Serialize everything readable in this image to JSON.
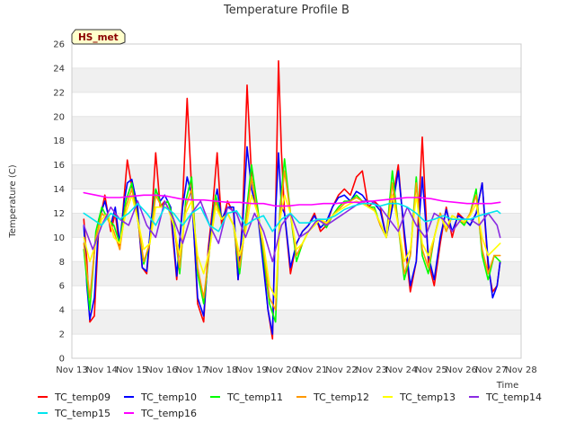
{
  "chart_data": {
    "type": "line",
    "title": "Temperature Profile B",
    "xlabel": "Time",
    "ylabel": "Temperature (C)",
    "ylim": [
      0,
      26
    ],
    "yticks": [
      0,
      2,
      4,
      6,
      8,
      10,
      12,
      14,
      16,
      18,
      20,
      22,
      24,
      26
    ],
    "xlim": [
      13,
      28
    ],
    "xticks": [
      {
        "value": 13,
        "label": "Nov 13"
      },
      {
        "value": 14,
        "label": "Nov 14"
      },
      {
        "value": 15,
        "label": "Nov 15"
      },
      {
        "value": 16,
        "label": "Nov 16"
      },
      {
        "value": 17,
        "label": "Nov 17"
      },
      {
        "value": 18,
        "label": "Nov 18"
      },
      {
        "value": 19,
        "label": "Nov 19"
      },
      {
        "value": 20,
        "label": "Nov 20"
      },
      {
        "value": 21,
        "label": "Nov 21"
      },
      {
        "value": 22,
        "label": "Nov 22"
      },
      {
        "value": 23,
        "label": "Nov 23"
      },
      {
        "value": 24,
        "label": "Nov 24"
      },
      {
        "value": 25,
        "label": "Nov 25"
      },
      {
        "value": 26,
        "label": "Nov 26"
      },
      {
        "value": 27,
        "label": "Nov 27"
      },
      {
        "value": 28,
        "label": "Nov 28"
      }
    ],
    "grid": "horizontal bands",
    "legend_position": "bottom",
    "annotation": "HS_met",
    "series": [
      {
        "name": "TC_temp09",
        "color": "#ff0000",
        "x": [
          13.4,
          13.5,
          13.6,
          13.75,
          13.9,
          14.1,
          14.3,
          14.45,
          14.6,
          14.75,
          14.85,
          15.0,
          15.2,
          15.35,
          15.5,
          15.65,
          15.8,
          15.95,
          16.1,
          16.3,
          16.5,
          16.7,
          16.85,
          17.0,
          17.2,
          17.4,
          17.55,
          17.7,
          17.85,
          18.0,
          18.2,
          18.4,
          18.55,
          18.7,
          18.85,
          19.0,
          19.2,
          19.4,
          19.55,
          19.7,
          19.8,
          19.9,
          20.0,
          20.1,
          20.3,
          20.5,
          20.7,
          20.9,
          21.1,
          21.3,
          21.5,
          21.7,
          21.9,
          22.1,
          22.3,
          22.5,
          22.7,
          22.9,
          23.1,
          23.3,
          23.5,
          23.7,
          23.9,
          24.1,
          24.3,
          24.5,
          24.7,
          24.9,
          25.1,
          25.3,
          25.5,
          25.7,
          25.9,
          26.1,
          26.3,
          26.5,
          26.7,
          26.9,
          27.05,
          27.2,
          27.3
        ],
        "y": [
          11.5,
          8.0,
          3.0,
          3.5,
          11.0,
          13.5,
          10.5,
          12.0,
          9.0,
          13.5,
          16.4,
          14.2,
          12.0,
          7.5,
          7.0,
          11.0,
          17.0,
          12.5,
          13.0,
          12.0,
          6.5,
          13.0,
          21.5,
          14.0,
          4.5,
          3.0,
          9.0,
          12.5,
          17.0,
          11.0,
          13.0,
          12.0,
          6.5,
          11.5,
          22.6,
          15.0,
          12.0,
          8.0,
          4.0,
          1.6,
          12.0,
          24.6,
          17.0,
          12.0,
          7.0,
          9.5,
          10.5,
          11.0,
          12.0,
          10.5,
          11.0,
          12.5,
          13.5,
          14.0,
          13.5,
          15.0,
          15.5,
          12.5,
          13.0,
          12.5,
          10.0,
          13.0,
          16.0,
          10.0,
          5.5,
          8.0,
          18.3,
          8.0,
          6.0,
          9.5,
          12.5,
          10.0,
          12.0,
          11.5,
          11.0,
          12.0,
          14.5,
          7.5,
          5.5,
          6.0,
          8.0
        ]
      },
      {
        "name": "TC_temp10",
        "color": "#0000ff",
        "x": [
          13.4,
          13.5,
          13.6,
          13.75,
          13.9,
          14.1,
          14.3,
          14.45,
          14.6,
          14.75,
          14.85,
          15.0,
          15.2,
          15.35,
          15.5,
          15.65,
          15.8,
          15.95,
          16.1,
          16.3,
          16.5,
          16.7,
          16.85,
          17.0,
          17.2,
          17.4,
          17.55,
          17.7,
          17.85,
          18.0,
          18.2,
          18.4,
          18.55,
          18.7,
          18.85,
          19.0,
          19.2,
          19.4,
          19.55,
          19.7,
          19.8,
          19.9,
          20.0,
          20.1,
          20.3,
          20.5,
          20.7,
          20.9,
          21.1,
          21.3,
          21.5,
          21.7,
          21.9,
          22.1,
          22.3,
          22.5,
          22.7,
          22.9,
          23.1,
          23.3,
          23.5,
          23.7,
          23.9,
          24.1,
          24.3,
          24.5,
          24.7,
          24.9,
          25.1,
          25.3,
          25.5,
          25.7,
          25.9,
          26.1,
          26.3,
          26.5,
          26.7,
          26.9,
          27.05,
          27.2,
          27.3
        ],
        "y": [
          11.0,
          6.0,
          3.2,
          5.0,
          11.5,
          13.0,
          11.0,
          12.5,
          9.5,
          13.0,
          14.5,
          14.8,
          12.5,
          7.5,
          7.2,
          11.5,
          14.0,
          13.0,
          13.5,
          12.5,
          6.8,
          12.5,
          15.0,
          13.5,
          5.0,
          3.5,
          8.5,
          12.0,
          14.0,
          11.5,
          12.5,
          12.5,
          6.5,
          11.0,
          17.5,
          14.0,
          12.0,
          7.5,
          4.0,
          2.0,
          12.0,
          17.0,
          12.5,
          12.0,
          7.5,
          9.5,
          10.5,
          11.0,
          11.8,
          10.8,
          11.3,
          12.5,
          13.3,
          13.5,
          13.0,
          13.8,
          13.5,
          12.8,
          12.8,
          12.2,
          10.0,
          12.5,
          15.5,
          10.5,
          6.0,
          8.0,
          15.0,
          8.5,
          6.5,
          10.0,
          12.3,
          10.5,
          11.8,
          11.5,
          11.0,
          12.0,
          14.5,
          8.0,
          5.0,
          6.0,
          8.0
        ]
      },
      {
        "name": "TC_temp11",
        "color": "#00ff00",
        "x": [
          13.4,
          13.6,
          13.8,
          14.0,
          14.2,
          14.4,
          14.6,
          14.8,
          15.0,
          15.2,
          15.4,
          15.6,
          15.8,
          16.0,
          16.2,
          16.4,
          16.6,
          16.8,
          17.0,
          17.2,
          17.4,
          17.6,
          17.8,
          18.0,
          18.2,
          18.4,
          18.6,
          18.8,
          19.0,
          19.2,
          19.4,
          19.6,
          19.8,
          19.95,
          20.1,
          20.3,
          20.5,
          20.7,
          20.9,
          21.1,
          21.3,
          21.5,
          21.7,
          21.9,
          22.1,
          22.3,
          22.5,
          22.7,
          22.9,
          23.1,
          23.3,
          23.5,
          23.7,
          23.9,
          24.1,
          24.3,
          24.5,
          24.7,
          24.9,
          25.1,
          25.3,
          25.5,
          25.7,
          25.9,
          26.1,
          26.3,
          26.5,
          26.7,
          26.9,
          27.1,
          27.3
        ],
        "y": [
          9.0,
          4.0,
          10.5,
          12.5,
          11.5,
          11.0,
          9.5,
          13.0,
          14.5,
          11.5,
          7.8,
          9.5,
          14.0,
          12.5,
          13.0,
          11.5,
          7.0,
          13.0,
          15.0,
          7.0,
          4.5,
          9.0,
          13.5,
          11.5,
          12.0,
          11.0,
          7.0,
          11.5,
          16.0,
          12.5,
          8.5,
          4.5,
          3.0,
          12.5,
          16.5,
          12.0,
          8.0,
          9.5,
          10.5,
          11.0,
          11.5,
          10.8,
          11.8,
          12.5,
          13.0,
          13.0,
          13.5,
          13.0,
          12.5,
          12.5,
          11.0,
          10.0,
          15.5,
          11.0,
          6.5,
          8.5,
          15.0,
          8.5,
          7.0,
          10.0,
          12.0,
          10.5,
          11.8,
          11.5,
          11.0,
          12.0,
          14.0,
          8.5,
          6.5,
          8.5,
          8.0
        ]
      },
      {
        "name": "TC_temp12",
        "color": "#ff9900",
        "x": [
          13.4,
          13.6,
          13.8,
          14.0,
          14.2,
          14.4,
          14.6,
          14.8,
          15.0,
          15.2,
          15.4,
          15.6,
          15.8,
          16.0,
          16.2,
          16.4,
          16.6,
          16.8,
          17.0,
          17.2,
          17.4,
          17.6,
          17.8,
          18.0,
          18.2,
          18.4,
          18.6,
          18.8,
          19.0,
          19.2,
          19.4,
          19.6,
          19.8,
          19.95,
          20.1,
          20.3,
          20.5,
          20.7,
          20.9,
          21.1,
          21.3,
          21.5,
          21.7,
          21.9,
          22.1,
          22.3,
          22.5,
          22.7,
          22.9,
          23.1,
          23.3,
          23.5,
          23.7,
          23.9,
          24.1,
          24.3,
          24.5,
          24.7,
          24.9,
          25.1,
          25.3,
          25.5,
          25.7,
          25.9,
          26.1,
          26.3,
          26.5,
          26.7,
          26.9,
          27.1,
          27.3
        ],
        "y": [
          9.5,
          5.0,
          10.0,
          12.0,
          11.5,
          10.5,
          9.0,
          12.5,
          14.0,
          11.5,
          8.0,
          9.5,
          13.5,
          12.5,
          12.5,
          11.0,
          7.5,
          12.5,
          14.0,
          7.5,
          5.0,
          9.0,
          13.0,
          11.5,
          12.0,
          11.0,
          7.5,
          11.0,
          15.0,
          12.0,
          9.0,
          5.0,
          4.0,
          12.0,
          15.5,
          12.0,
          8.5,
          9.5,
          10.5,
          11.0,
          11.5,
          11.0,
          11.8,
          12.3,
          12.8,
          13.0,
          13.3,
          13.0,
          12.5,
          12.3,
          11.0,
          10.0,
          14.5,
          11.0,
          7.0,
          8.5,
          14.5,
          9.0,
          7.5,
          10.0,
          12.0,
          10.5,
          11.8,
          11.5,
          11.2,
          12.0,
          13.5,
          9.0,
          7.0,
          8.5,
          8.5
        ]
      },
      {
        "name": "TC_temp13",
        "color": "#ffff00",
        "x": [
          13.4,
          13.6,
          13.8,
          14.0,
          14.2,
          14.4,
          14.6,
          14.8,
          15.0,
          15.2,
          15.4,
          15.6,
          15.8,
          16.0,
          16.2,
          16.4,
          16.6,
          16.8,
          17.0,
          17.2,
          17.4,
          17.6,
          17.8,
          18.0,
          18.2,
          18.4,
          18.6,
          18.8,
          19.0,
          19.2,
          19.4,
          19.6,
          19.8,
          19.95,
          20.1,
          20.3,
          20.5,
          20.7,
          20.9,
          21.1,
          21.3,
          21.5,
          21.7,
          21.9,
          22.1,
          22.3,
          22.5,
          22.7,
          22.9,
          23.1,
          23.3,
          23.5,
          23.7,
          23.9,
          24.1,
          24.3,
          24.5,
          24.7,
          24.9,
          25.1,
          25.3,
          25.5,
          25.7,
          25.9,
          26.1,
          26.3,
          26.5,
          26.7,
          26.9,
          27.1,
          27.3
        ],
        "y": [
          10.0,
          8.0,
          9.5,
          11.5,
          12.0,
          10.0,
          9.5,
          12.0,
          13.5,
          11.5,
          9.0,
          9.5,
          12.5,
          12.5,
          12.5,
          11.0,
          8.5,
          12.0,
          13.0,
          8.5,
          7.0,
          9.0,
          12.5,
          11.5,
          12.0,
          11.0,
          8.5,
          10.5,
          13.5,
          12.0,
          9.5,
          6.0,
          5.0,
          11.5,
          13.5,
          12.0,
          9.0,
          9.5,
          10.5,
          11.0,
          11.5,
          11.2,
          11.8,
          12.2,
          12.5,
          12.8,
          13.0,
          12.8,
          12.5,
          12.2,
          11.2,
          10.0,
          13.5,
          11.0,
          8.0,
          9.0,
          13.5,
          9.5,
          8.5,
          10.0,
          11.8,
          10.8,
          11.8,
          11.5,
          11.3,
          11.8,
          12.8,
          10.0,
          8.5,
          9.0,
          9.5
        ]
      },
      {
        "name": "TC_temp14",
        "color": "#8a2be2",
        "x": [
          13.4,
          13.7,
          14.0,
          14.3,
          14.6,
          14.9,
          15.2,
          15.5,
          15.8,
          16.1,
          16.4,
          16.7,
          17.0,
          17.3,
          17.6,
          17.9,
          18.2,
          18.5,
          18.8,
          19.1,
          19.4,
          19.7,
          20.0,
          20.3,
          20.6,
          20.9,
          21.2,
          21.5,
          21.8,
          22.1,
          22.4,
          22.7,
          23.0,
          23.3,
          23.6,
          23.9,
          24.2,
          24.5,
          24.8,
          25.1,
          25.4,
          25.7,
          26.0,
          26.3,
          26.6,
          26.9,
          27.2,
          27.3
        ],
        "y": [
          11.0,
          9.0,
          11.0,
          12.5,
          11.5,
          11.0,
          13.0,
          11.0,
          10.0,
          13.0,
          11.5,
          9.5,
          12.0,
          13.0,
          11.0,
          9.5,
          12.5,
          12.0,
          10.0,
          12.0,
          10.5,
          8.0,
          11.0,
          12.0,
          10.0,
          10.5,
          11.5,
          11.0,
          11.5,
          12.0,
          12.5,
          13.0,
          13.0,
          12.5,
          11.5,
          10.5,
          12.5,
          11.0,
          10.0,
          12.0,
          11.5,
          10.5,
          11.5,
          11.5,
          11.0,
          12.0,
          11.0,
          10.0
        ]
      },
      {
        "name": "TC_temp15",
        "color": "#00e5ee",
        "x": [
          13.4,
          13.7,
          14.0,
          14.3,
          14.6,
          14.9,
          15.2,
          15.5,
          15.8,
          16.1,
          16.4,
          16.7,
          17.0,
          17.3,
          17.6,
          17.9,
          18.2,
          18.5,
          18.8,
          19.1,
          19.4,
          19.7,
          20.0,
          20.3,
          20.6,
          20.9,
          21.2,
          21.5,
          21.8,
          22.1,
          22.4,
          22.7,
          23.0,
          23.3,
          23.6,
          23.9,
          24.2,
          24.5,
          24.8,
          25.1,
          25.4,
          25.7,
          26.0,
          26.3,
          26.6,
          26.9,
          27.2,
          27.3
        ],
        "y": [
          12.0,
          11.5,
          11.0,
          12.0,
          11.5,
          12.0,
          12.8,
          12.0,
          11.0,
          12.5,
          12.0,
          11.0,
          12.0,
          12.5,
          11.0,
          10.5,
          12.0,
          12.2,
          11.0,
          11.5,
          11.8,
          10.5,
          11.5,
          12.0,
          11.2,
          11.2,
          11.5,
          11.5,
          11.8,
          12.3,
          12.6,
          12.8,
          12.8,
          12.6,
          12.8,
          12.8,
          12.5,
          12.0,
          11.3,
          11.5,
          11.8,
          11.5,
          11.5,
          11.5,
          11.8,
          12.0,
          12.2,
          12.0
        ]
      },
      {
        "name": "TC_temp16",
        "color": "#ff00ff",
        "x": [
          13.4,
          13.8,
          14.2,
          14.6,
          15.0,
          15.4,
          15.8,
          16.2,
          16.6,
          17.0,
          17.4,
          17.8,
          18.2,
          18.6,
          19.0,
          19.4,
          19.8,
          20.2,
          20.6,
          21.0,
          21.4,
          21.8,
          22.2,
          22.6,
          23.0,
          23.4,
          23.8,
          24.2,
          24.6,
          25.0,
          25.4,
          25.8,
          26.2,
          26.6,
          27.0,
          27.3
        ],
        "y": [
          13.7,
          13.5,
          13.3,
          13.3,
          13.4,
          13.5,
          13.5,
          13.4,
          13.2,
          13.1,
          13.1,
          13.0,
          12.9,
          12.9,
          12.8,
          12.8,
          12.6,
          12.6,
          12.7,
          12.7,
          12.8,
          12.8,
          12.9,
          12.9,
          13.0,
          13.1,
          13.2,
          13.3,
          13.3,
          13.2,
          13.0,
          12.9,
          12.8,
          12.8,
          12.8,
          12.9
        ]
      }
    ]
  }
}
